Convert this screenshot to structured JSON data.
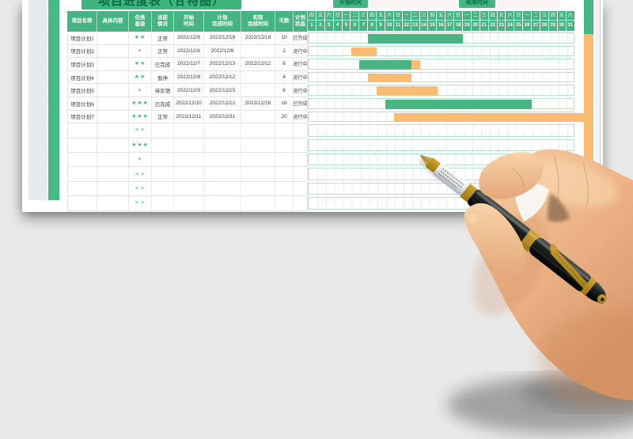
{
  "toolbar": {
    "title": "项目进度表（甘特图）",
    "start_button": "开始时间",
    "start_value": "",
    "end_button": "结束时间",
    "end_value": ""
  },
  "table": {
    "columns": [
      {
        "lines": [
          "项目名称"
        ]
      },
      {
        "lines": [
          "具体内容"
        ]
      },
      {
        "lines": [
          "任务",
          "星级"
        ]
      },
      {
        "lines": [
          "当前",
          "情况"
        ]
      },
      {
        "lines": [
          "开始",
          "时间"
        ]
      },
      {
        "lines": [
          "计划",
          "完成时间"
        ]
      },
      {
        "lines": [
          "实际",
          "完成时间"
        ]
      },
      {
        "lines": [
          "天数"
        ]
      },
      {
        "lines": [
          "计划",
          "状态"
        ]
      }
    ],
    "calendar": {
      "weekdays": [
        "四",
        "五",
        "六",
        "日",
        "一",
        "二",
        "三",
        "四",
        "五",
        "六",
        "日",
        "一",
        "二",
        "三",
        "四",
        "五",
        "六",
        "日",
        "一",
        "二",
        "三",
        "四",
        "五",
        "六",
        "日",
        "一",
        "二",
        "三",
        "四",
        "五",
        "六"
      ],
      "dates": [
        "1",
        "2",
        "3",
        "4",
        "5",
        "6",
        "7",
        "8",
        "9",
        "10",
        "11",
        "12",
        "13",
        "14",
        "15",
        "16",
        "17",
        "18",
        "19",
        "20",
        "21",
        "22",
        "23",
        "24",
        "25",
        "26",
        "27",
        "28",
        "29",
        "30",
        "31"
      ]
    },
    "rows": [
      {
        "name": "项目计划1",
        "content": "",
        "stars": 2,
        "star_style": "green",
        "situation": "正常",
        "start": "2022/12/8",
        "planned": "2022/12/18",
        "actual": "2022/12/18",
        "days": "10",
        "status": "已完成",
        "bars": [
          {
            "from": 8,
            "to": 18,
            "color": "green"
          }
        ]
      },
      {
        "name": "项目计划2",
        "content": "",
        "stars": 1,
        "star_style": "gray",
        "situation": "正常",
        "start": "2022/12/6",
        "planned": "2022/12/8",
        "actual": "",
        "days": "2",
        "status": "进行中",
        "bars": [
          {
            "from": 6,
            "to": 8,
            "color": "orange"
          }
        ]
      },
      {
        "name": "项目计划3",
        "content": "",
        "stars": 2,
        "star_style": "green",
        "situation": "已完成",
        "start": "2022/12/7",
        "planned": "2022/12/13",
        "actual": "2022/12/12",
        "days": "6",
        "status": "进行中",
        "bars": [
          {
            "from": 7,
            "to": 12,
            "color": "green"
          },
          {
            "from": 13,
            "to": 13,
            "color": "orange"
          }
        ]
      },
      {
        "name": "项目计划4",
        "content": "",
        "stars": 2,
        "star_style": "green",
        "situation": "暂停",
        "start": "2022/12/8",
        "planned": "2022/12/12",
        "actual": "",
        "days": "4",
        "status": "进行中",
        "bars": [
          {
            "from": 8,
            "to": 12,
            "color": "orange"
          }
        ]
      },
      {
        "name": "项目计划5",
        "content": "",
        "stars": 1,
        "star_style": "gray",
        "situation": "待反馈",
        "start": "2022/12/9",
        "planned": "2022/12/15",
        "actual": "",
        "days": "6",
        "status": "进行中",
        "bars": [
          {
            "from": 9,
            "to": 15,
            "color": "orange"
          }
        ]
      },
      {
        "name": "项目计划6",
        "content": "",
        "stars": 3,
        "star_style": "green",
        "situation": "已完成",
        "start": "2022/12/10",
        "planned": "2022/12/12",
        "actual": "2022/12/26",
        "days": "16",
        "status": "已完成",
        "bars": [
          {
            "from": 10,
            "to": 26,
            "color": "green"
          }
        ]
      },
      {
        "name": "项目计划7",
        "content": "",
        "stars": 3,
        "star_style": "green",
        "situation": "正常",
        "start": "2022/12/11",
        "planned": "2022/12/31",
        "actual": "",
        "days": "20",
        "status": "进行中",
        "bars": [
          {
            "from": 11,
            "to": 31,
            "color": "orange",
            "extend": true
          }
        ]
      }
    ],
    "empty_rows": [
      {
        "stars": 2,
        "star_style": "light"
      },
      {
        "stars": 3,
        "star_style": "green"
      },
      {
        "stars": 1,
        "star_style": "gray"
      },
      {
        "stars": 2,
        "star_style": "light"
      },
      {
        "stars": 2,
        "star_style": "light"
      },
      {
        "stars": 2,
        "star_style": "light"
      },
      {
        "stars": 2,
        "star_style": "light"
      }
    ]
  },
  "colors": {
    "green": "#48b584",
    "orange": "#f8bd72",
    "header_green": "#46b583",
    "star_green": "#3fbb84",
    "star_light": "#9bd9bd",
    "star_gray": "#b9b9b9"
  }
}
